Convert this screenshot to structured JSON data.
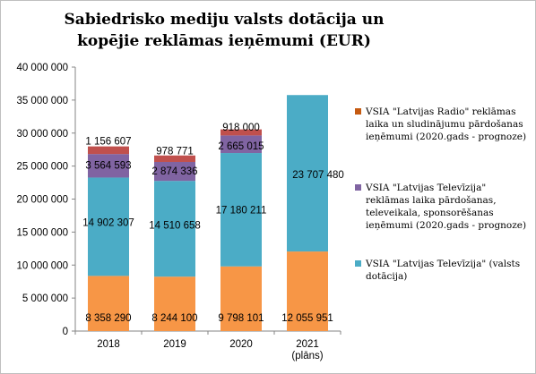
{
  "chart_data": {
    "type": "bar",
    "stacked": true,
    "title": "Sabiedrisko mediju valsts dotācija un kopējie reklāmas ieņēmumi (EUR)",
    "categories": [
      "2018",
      "2019",
      "2020",
      "2021\n(plāns)"
    ],
    "ylim": [
      0,
      40000000
    ],
    "yticks": [
      0,
      5000000,
      10000000,
      15000000,
      20000000,
      25000000,
      30000000,
      35000000,
      40000000
    ],
    "ytick_labels": [
      "0",
      "5 000 000",
      "10 000 000",
      "15 000 000",
      "20 000 000",
      "25 000 000",
      "30 000 000",
      "35 000 000",
      "40 000 000"
    ],
    "grid": false,
    "legend_position": "right",
    "series": [
      {
        "name": "SIA \"Latvijas Televīzija\" (valsts dotācija)",
        "color": "#f79646",
        "values": [
          8358290,
          8244100,
          9798101,
          12055951
        ],
        "labels": [
          "8 358 290",
          "8 244 100",
          "9 798 101",
          "12 055 951"
        ]
      },
      {
        "name": "VSIA \"Latvijas Televīzija\" (valsts dotācija)",
        "color": "#4bacc6",
        "values": [
          14902307,
          14510658,
          17180211,
          23707480
        ],
        "labels": [
          "14 902 307",
          "14 510 658",
          "17 180 211",
          "23 707 480"
        ]
      },
      {
        "name": "VSIA \"Latvijas Televīzija\" reklāmas laika pārdošanas, televeikala, sponsorēšanas ieņēmumi (2020.gads - prognoze)",
        "color": "#8064a2",
        "values": [
          3564593,
          2874336,
          2665015,
          0
        ],
        "labels": [
          "3 564 593",
          "2 874 336",
          "2 665 015",
          ""
        ]
      },
      {
        "name": "VSIA \"Latvijas Radio\"  reklāmas laika un sludinājumu pārdošanas ieņēmumi (2020.gads - prognoze)",
        "color": "#c0504d",
        "values": [
          1156607,
          978771,
          918000,
          0
        ],
        "labels": [
          "1 156 607",
          "978 771",
          "918 000",
          ""
        ]
      }
    ],
    "legend_entries": [
      {
        "text": "VSIA \"Latvijas Radio\"  reklāmas laika un sludinājumu pārdošanas ieņēmumi (2020.gads - prognoze)",
        "color": "#c55a11"
      },
      {
        "text": "VSIA \"Latvijas Televīzija\" reklāmas laika pārdošanas, televeikala, sponsorēšanas ieņēmumi (2020.gads - prognoze)",
        "color": "#8064a2"
      },
      {
        "text": "VSIA \"Latvijas Televīzija\" (valsts dotācija)",
        "color": "#4bacc6"
      }
    ]
  }
}
